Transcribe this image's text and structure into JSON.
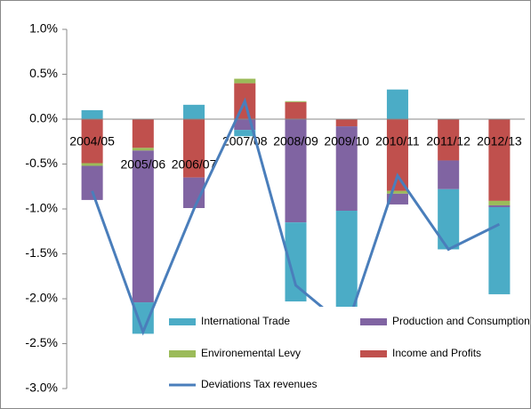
{
  "chart_data": {
    "type": "stacked-bar-line",
    "categories": [
      "2004/05",
      "2005/06",
      "2006/07",
      "2007/08",
      "2008/09",
      "2009/10",
      "2010/11",
      "2011/12",
      "2012/13"
    ],
    "series": [
      {
        "name": "Income and Profits",
        "color": "#c0504d",
        "values": [
          -0.49,
          -0.32,
          -0.65,
          0.4,
          0.19,
          -0.08,
          -0.8,
          -0.46,
          -0.91
        ]
      },
      {
        "name": "Environemental Levy",
        "color": "#9bbb59",
        "values": [
          -0.03,
          -0.03,
          0,
          0.05,
          0.01,
          0,
          -0.03,
          0,
          -0.05
        ]
      },
      {
        "name": "Production and Consumption",
        "color": "#8064a2",
        "values": [
          -0.38,
          -1.69,
          -0.34,
          -0.12,
          -1.15,
          -0.94,
          -0.12,
          -0.32,
          -0.02
        ]
      },
      {
        "name": "International Trade",
        "color": "#4bacc6",
        "values": [
          0.1,
          -0.35,
          0.16,
          -0.07,
          -0.88,
          -1.3,
          0.33,
          -0.67,
          -0.97
        ]
      },
      {
        "name": "Deviations Tax revenues",
        "color": "#4a7ebb",
        "type": "line",
        "values": [
          -0.8,
          -2.37,
          -1.0,
          0.2,
          -1.85,
          -2.32,
          -0.63,
          -1.45,
          -1.17
        ]
      }
    ],
    "ylim": [
      -3,
      1
    ],
    "yticks": [
      {
        "value": -3,
        "label": "-3.0%"
      },
      {
        "value": -2.5,
        "label": "-2.5%"
      },
      {
        "value": -2,
        "label": "-2.0%"
      },
      {
        "value": -1.5,
        "label": "-1.5%"
      },
      {
        "value": -1,
        "label": "-1.0%"
      },
      {
        "value": -0.5,
        "label": "-0.5%"
      },
      {
        "value": 0,
        "label": "0.0%"
      },
      {
        "value": 0.5,
        "label": "0.5%"
      },
      {
        "value": 1,
        "label": "1.0%"
      }
    ],
    "grid": false
  }
}
